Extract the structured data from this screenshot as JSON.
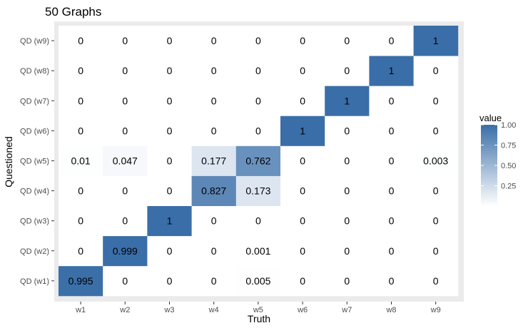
{
  "chart_data": {
    "type": "heatmap",
    "title": "50 Graphs",
    "xlabel": "Truth",
    "ylabel": "Questioned",
    "x_categories": [
      "w1",
      "w2",
      "w3",
      "w4",
      "w5",
      "w6",
      "w7",
      "w8",
      "w9"
    ],
    "y_categories": [
      "QD (w1)",
      "QD (w2)",
      "QD (w3)",
      "QD (w4)",
      "QD (w5)",
      "QD (w6)",
      "QD (w7)",
      "QD (w8)",
      "QD (w9)"
    ],
    "values": [
      [
        0.995,
        0,
        0,
        0,
        0.005,
        0,
        0,
        0,
        0
      ],
      [
        0,
        0.999,
        0,
        0,
        0.001,
        0,
        0,
        0,
        0
      ],
      [
        0,
        0,
        1,
        0,
        0,
        0,
        0,
        0,
        0
      ],
      [
        0,
        0,
        0,
        0.827,
        0.173,
        0,
        0,
        0,
        0
      ],
      [
        0.01,
        0.047,
        0,
        0.177,
        0.762,
        0,
        0,
        0,
        0.003
      ],
      [
        0,
        0,
        0,
        0,
        0,
        1,
        0,
        0,
        0
      ],
      [
        0,
        0,
        0,
        0,
        0,
        0,
        1,
        0,
        0
      ],
      [
        0,
        0,
        0,
        0,
        0,
        0,
        0,
        1,
        0
      ],
      [
        0,
        0,
        0,
        0,
        0,
        0,
        0,
        0,
        1
      ]
    ],
    "cell_labels": [
      [
        "0.995",
        "0",
        "0",
        "0",
        "0.005",
        "0",
        "0",
        "0",
        "0"
      ],
      [
        "0",
        "0.999",
        "0",
        "0",
        "0.001",
        "0",
        "0",
        "0",
        "0"
      ],
      [
        "0",
        "0",
        "1",
        "0",
        "0",
        "0",
        "0",
        "0",
        "0"
      ],
      [
        "0",
        "0",
        "0",
        "0.827",
        "0.173",
        "0",
        "0",
        "0",
        "0"
      ],
      [
        "0.01",
        "0.047",
        "0",
        "0.177",
        "0.762",
        "0",
        "0",
        "0",
        "0.003"
      ],
      [
        "0",
        "0",
        "0",
        "0",
        "0",
        "1",
        "0",
        "0",
        "0"
      ],
      [
        "0",
        "0",
        "0",
        "0",
        "0",
        "0",
        "1",
        "0",
        "0"
      ],
      [
        "0",
        "0",
        "0",
        "0",
        "0",
        "0",
        "0",
        "1",
        "0"
      ],
      [
        "0",
        "0",
        "0",
        "0",
        "0",
        "0",
        "0",
        "0",
        "1"
      ]
    ],
    "legend": {
      "title": "value",
      "ticks": [
        0.25,
        0.5,
        0.75,
        1.0
      ],
      "tick_labels": [
        "0.25",
        "0.50",
        "0.75",
        "1.00"
      ],
      "range": [
        0,
        1
      ],
      "placement": "right"
    },
    "colors": {
      "low": "#ffffff",
      "high": "#3a6ea8",
      "panel": "#ebebeb"
    }
  }
}
